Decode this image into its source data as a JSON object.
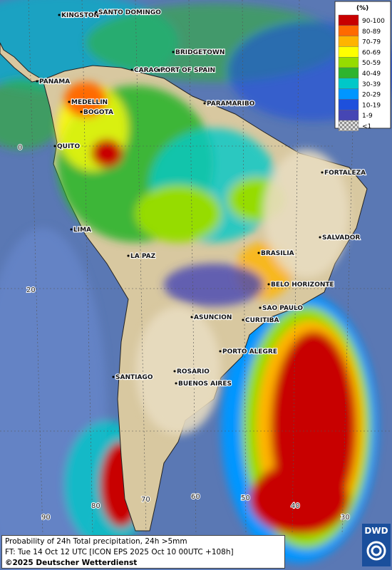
{
  "map": {
    "legend": {
      "unit": "(%)",
      "items": [
        {
          "label": "90-100",
          "color": "#c80000"
        },
        {
          "label": "80-89",
          "color": "#ff6a00"
        },
        {
          "label": "70-79",
          "color": "#ffb400"
        },
        {
          "label": "60-69",
          "color": "#ffff00"
        },
        {
          "label": "50-59",
          "color": "#96dc00"
        },
        {
          "label": "40-49",
          "color": "#2eb42e"
        },
        {
          "label": "30-39",
          "color": "#00c8c8"
        },
        {
          "label": "20-29",
          "color": "#0096ff"
        },
        {
          "label": "10-19",
          "color": "#1e50dc"
        },
        {
          "label": "1-9",
          "color": "#4646b4"
        },
        {
          "label": "<1",
          "color": "#b4b4b4"
        }
      ]
    },
    "cities": [
      "KINGSTON",
      "SANTO DOMINGO",
      "BRIDGETOWN",
      "CARACAS",
      "PORT OF SPAIN",
      "PANAMA",
      "MEDELLIN",
      "BOGOTA",
      "PARAMARIBO",
      "QUITO",
      "FORTALEZA",
      "LIMA",
      "SALVADOR",
      "BRASILIA",
      "LA PAZ",
      "BELO HORIZONTE",
      "SAO PAULO",
      "ASUNCION",
      "CURITIBA",
      "PORTO ALEGRE",
      "ROSARIO",
      "BUENOS AIRES",
      "SANTIAGO"
    ],
    "grid_labels": {
      "lat": [
        "0",
        "20"
      ],
      "lon": [
        "90",
        "80",
        "70",
        "60",
        "50",
        "40",
        "30"
      ]
    }
  },
  "footer": {
    "line1": "Probability of 24h Total precipitation, 24h >5mm",
    "line2": "FT: Tue 14 Oct 12 UTC [ICON EPS 2025 Oct 10 00UTC +108h]",
    "copyright": "©2025 Deutscher Wetterdienst"
  },
  "logo": "DWD"
}
